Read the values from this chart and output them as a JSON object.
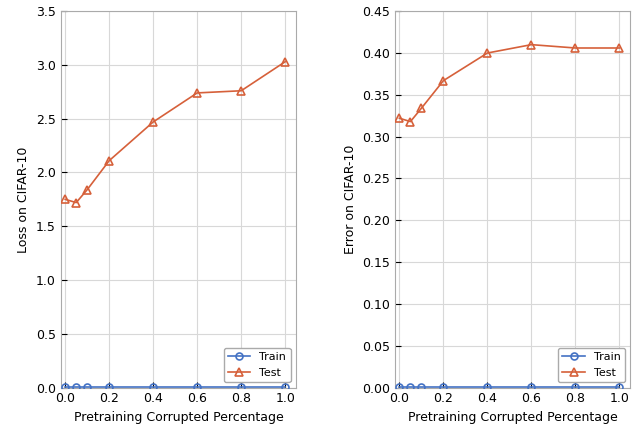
{
  "x": [
    0,
    0.05,
    0.1,
    0.2,
    0.4,
    0.6,
    0.8,
    1.0
  ],
  "loss_train": [
    0.005,
    0.005,
    0.005,
    0.005,
    0.005,
    0.005,
    0.005,
    0.005
  ],
  "loss_test": [
    1.75,
    1.72,
    1.84,
    2.11,
    2.47,
    2.74,
    2.76,
    3.03
  ],
  "error_train": [
    0.001,
    0.001,
    0.001,
    0.001,
    0.001,
    0.001,
    0.001,
    0.001
  ],
  "error_test": [
    0.322,
    0.318,
    0.334,
    0.367,
    0.4,
    0.41,
    0.406,
    0.406
  ],
  "loss_ylim": [
    0,
    3.5
  ],
  "loss_yticks": [
    0,
    0.5,
    1.0,
    1.5,
    2.0,
    2.5,
    3.0,
    3.5
  ],
  "error_ylim": [
    0,
    0.45
  ],
  "error_yticks": [
    0,
    0.05,
    0.1,
    0.15,
    0.2,
    0.25,
    0.3,
    0.35,
    0.4,
    0.45
  ],
  "xticks": [
    0,
    0.2,
    0.4,
    0.6,
    0.8,
    1.0
  ],
  "xlabel": "Pretraining Corrupted Percentage",
  "loss_ylabel": "Loss on CIFAR-10",
  "error_ylabel": "Error on CIFAR-10",
  "train_color": "#4472c4",
  "test_color": "#d6603a",
  "bg_color": "#ffffff",
  "axes_bg_color": "#ffffff",
  "grid_color": "#d8d8d8",
  "spine_color": "#aaaaaa",
  "train_label": "Train",
  "test_label": "Test",
  "label_fontsize": 9,
  "tick_fontsize": 9,
  "legend_fontsize": 8
}
